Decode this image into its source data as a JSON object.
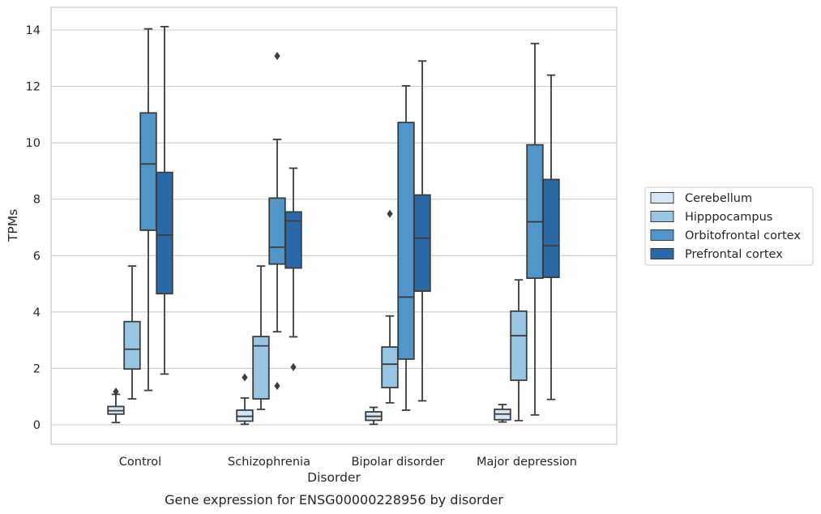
{
  "chart_data": {
    "type": "box",
    "title": "Gene expression for ENSG00000228956 by disorder",
    "xlabel": "Disorder",
    "ylabel": "TPMs",
    "categories": [
      "Control",
      "Schizophrenia",
      "Bipolar disorder",
      "Major depression"
    ],
    "ylim": [
      -0.7,
      14.8
    ],
    "yticks": [
      0,
      2,
      4,
      6,
      8,
      10,
      12,
      14
    ],
    "grid": "horizontal",
    "legend_position": "right",
    "series": [
      {
        "name": "Cerebellum",
        "color": "#d6e6f4",
        "boxes": [
          {
            "whislo": 0.08,
            "q1": 0.38,
            "med": 0.5,
            "q3": 0.65,
            "whishi": 1.08,
            "fliers": [
              1.18
            ]
          },
          {
            "whislo": 0.02,
            "q1": 0.13,
            "med": 0.3,
            "q3": 0.52,
            "whishi": 0.95,
            "fliers": [
              1.68
            ]
          },
          {
            "whislo": 0.02,
            "q1": 0.16,
            "med": 0.3,
            "q3": 0.46,
            "whishi": 0.62,
            "fliers": []
          },
          {
            "whislo": 0.1,
            "q1": 0.18,
            "med": 0.38,
            "q3": 0.55,
            "whishi": 0.72,
            "fliers": []
          }
        ]
      },
      {
        "name": "Hipppocampus",
        "color": "#9ac5e0",
        "boxes": [
          {
            "whislo": 0.92,
            "q1": 1.98,
            "med": 2.68,
            "q3": 3.66,
            "whishi": 5.63,
            "fliers": []
          },
          {
            "whislo": 0.55,
            "q1": 0.92,
            "med": 2.8,
            "q3": 3.13,
            "whishi": 5.63,
            "fliers": []
          },
          {
            "whislo": 0.78,
            "q1": 1.32,
            "med": 2.15,
            "q3": 2.76,
            "whishi": 3.86,
            "fliers": [
              7.48
            ]
          },
          {
            "whislo": 0.15,
            "q1": 1.58,
            "med": 3.16,
            "q3": 4.03,
            "whishi": 5.14,
            "fliers": []
          }
        ]
      },
      {
        "name": "Orbitofrontal cortex",
        "color": "#5096c9",
        "boxes": [
          {
            "whislo": 1.22,
            "q1": 6.9,
            "med": 9.25,
            "q3": 11.06,
            "whishi": 14.04,
            "fliers": []
          },
          {
            "whislo": 3.3,
            "q1": 5.7,
            "med": 6.3,
            "q3": 8.04,
            "whishi": 10.12,
            "fliers": [
              13.08,
              1.38
            ]
          },
          {
            "whislo": 0.52,
            "q1": 2.33,
            "med": 4.53,
            "q3": 10.72,
            "whishi": 12.02,
            "fliers": []
          },
          {
            "whislo": 0.35,
            "q1": 5.2,
            "med": 7.2,
            "q3": 9.93,
            "whishi": 13.52,
            "fliers": []
          }
        ]
      },
      {
        "name": "Prefrontal cortex",
        "color": "#2b68a8",
        "boxes": [
          {
            "whislo": 1.8,
            "q1": 4.65,
            "med": 6.73,
            "q3": 8.95,
            "whishi": 14.12,
            "fliers": []
          },
          {
            "whislo": 3.12,
            "q1": 5.56,
            "med": 7.23,
            "q3": 7.55,
            "whishi": 9.1,
            "fliers": [
              2.05
            ]
          },
          {
            "whislo": 0.85,
            "q1": 4.74,
            "med": 6.62,
            "q3": 8.15,
            "whishi": 12.9,
            "fliers": []
          },
          {
            "whislo": 0.9,
            "q1": 5.23,
            "med": 6.35,
            "q3": 8.7,
            "whishi": 12.4,
            "fliers": []
          }
        ]
      }
    ]
  }
}
